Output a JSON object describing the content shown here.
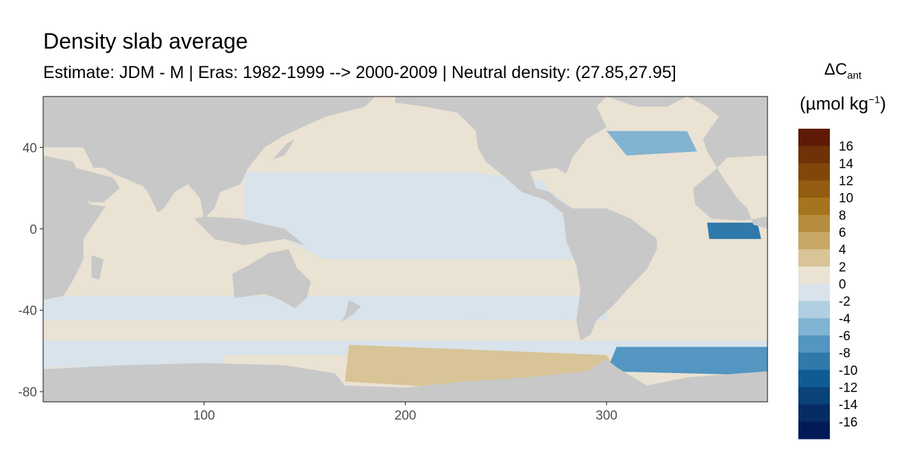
{
  "chart_data": {
    "type": "heatmap",
    "title": "Density slab average",
    "subtitle": "Estimate: JDM - M | Eras: 1982-1999 --> 2000-2009 | Neutral density: (27.85,27.95]",
    "xlabel": "",
    "ylabel": "",
    "xlim": [
      20,
      380
    ],
    "ylim": [
      -85,
      65
    ],
    "x_ticks": [
      "100",
      "200",
      "300"
    ],
    "x_tick_values": [
      100,
      200,
      300
    ],
    "y_ticks": [
      "40",
      "0",
      "-40",
      "-80"
    ],
    "y_tick_values": [
      40,
      0,
      -40,
      -80
    ],
    "legend": {
      "title": "ΔC",
      "title_subscript": "ant",
      "unit_prefix": "(µmol kg",
      "unit_superscript": "−1",
      "unit_suffix": ")",
      "labels": [
        "16",
        "14",
        "12",
        "10",
        "8",
        "6",
        "4",
        "2",
        "0",
        "-2",
        "-4",
        "-6",
        "-8",
        "-10",
        "-12",
        "-14",
        "-16"
      ],
      "bin_colors": [
        "#5e1a06",
        "#6f3108",
        "#82460a",
        "#935c10",
        "#a5741f",
        "#b68d3f",
        "#c7a866",
        "#d8c496",
        "#eae2d3",
        "#d8e3eb",
        "#b1cfe0",
        "#81b3d2",
        "#5296c1",
        "#2f79ab",
        "#0f5c94",
        "#0a427a",
        "#062c66",
        "#021b57"
      ]
    },
    "land_color": "#c8c8c8",
    "ocean_regions": [
      {
        "name": "Indian Ocean",
        "value": 0.8
      },
      {
        "name": "North Pacific",
        "value": 0.6
      },
      {
        "name": "Equatorial Pacific",
        "value": -1
      },
      {
        "name": "South Pacific",
        "value": 0.6
      },
      {
        "name": "Southern Ocean band",
        "value": -1.5
      },
      {
        "name": "Antarctic margin Pacific sector",
        "value": 4
      },
      {
        "name": "North Atlantic",
        "value": 1.5
      },
      {
        "name": "Labrador Sea",
        "value": -4
      },
      {
        "name": "Equatorial Atlantic",
        "value": -9
      },
      {
        "name": "South Atlantic",
        "value": 0.6
      },
      {
        "name": "Weddell Sea",
        "value": -6
      }
    ]
  }
}
